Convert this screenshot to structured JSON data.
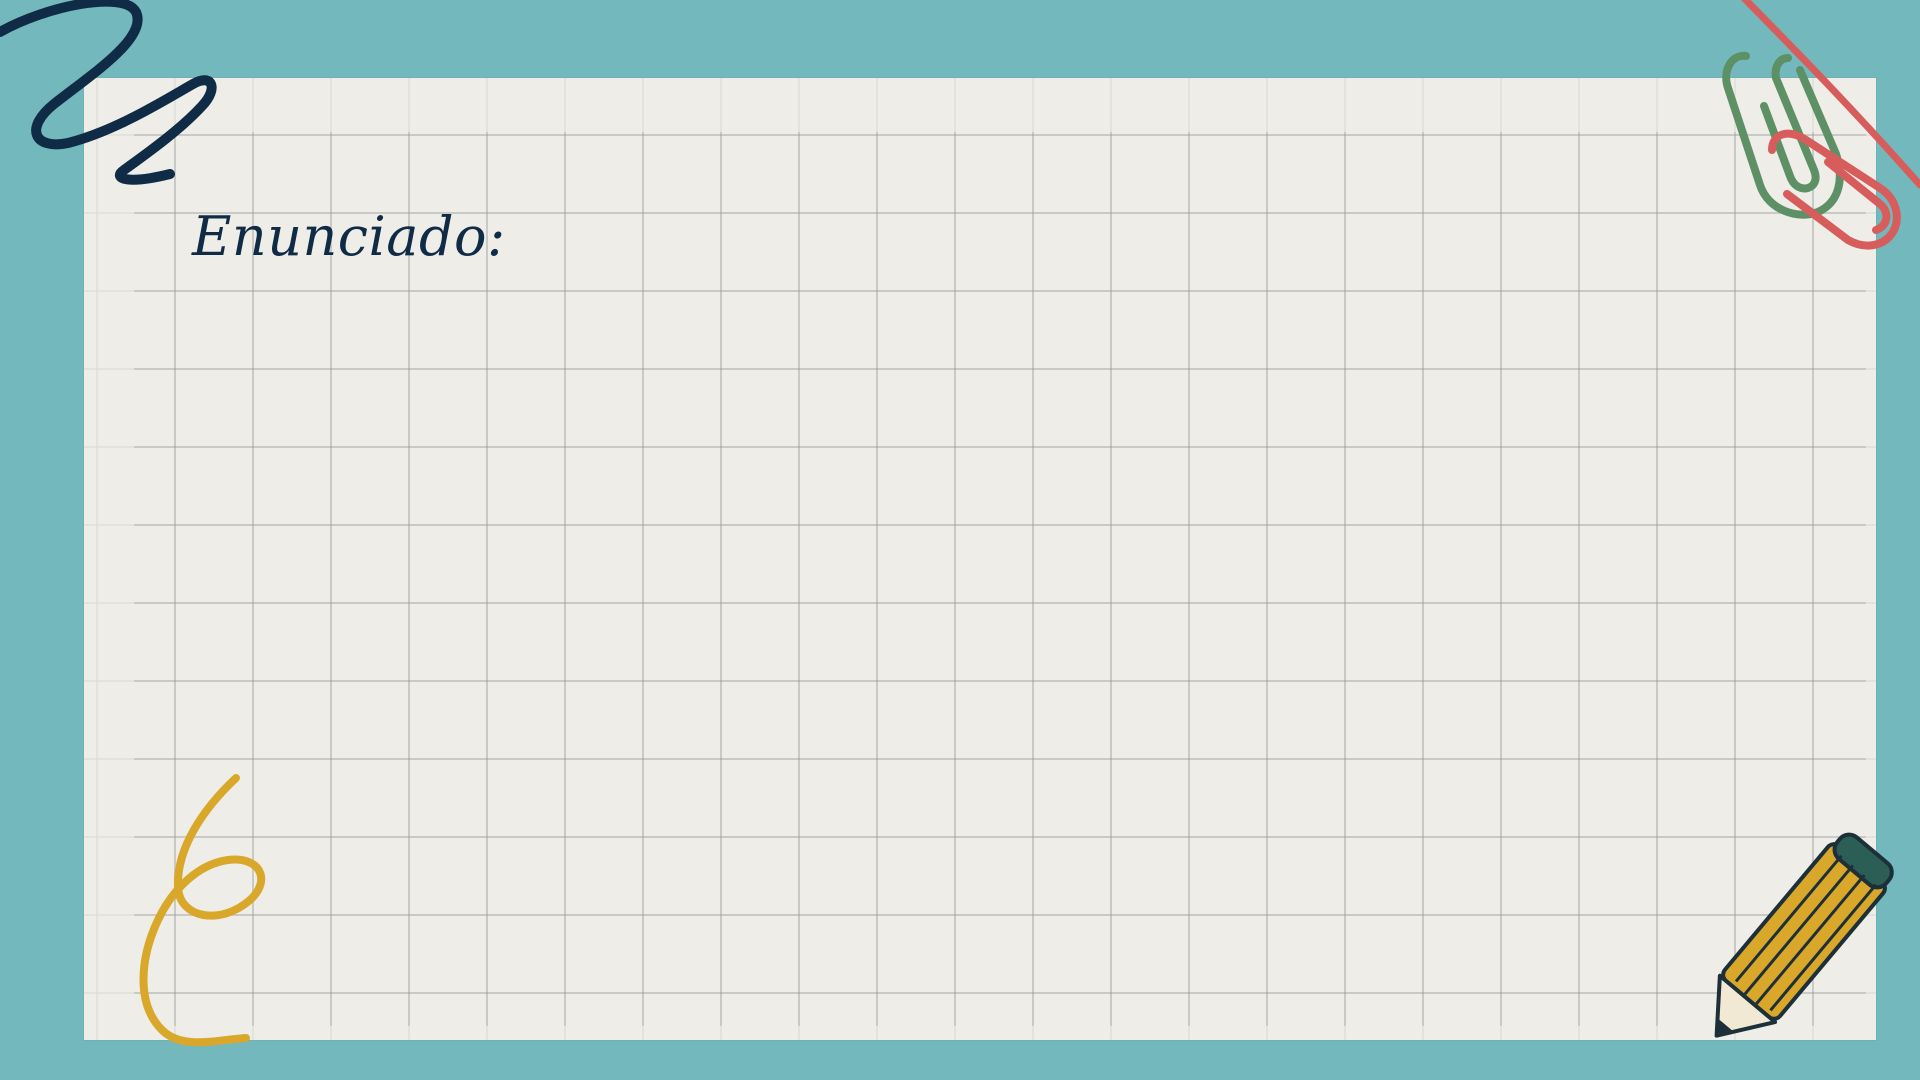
{
  "slide": {
    "title": "Enunciado:"
  },
  "decorations": {
    "top_left": "scribble-icon",
    "top_right": "paperclip-icon",
    "bottom_left": "swirl-icon",
    "bottom_right": "pencil-icon"
  },
  "colors": {
    "background": "#72B8BC",
    "paper": "#EEEDE8",
    "grid": "#B6B5B1",
    "text": "#0F2B45",
    "scribble": "#0F2B45",
    "paperclip_green": "#5D9064",
    "paperclip_red": "#D75D5D",
    "swirl": "#D9A82A",
    "pencil_body": "#D9A82A",
    "pencil_cap": "#2B5E55"
  }
}
